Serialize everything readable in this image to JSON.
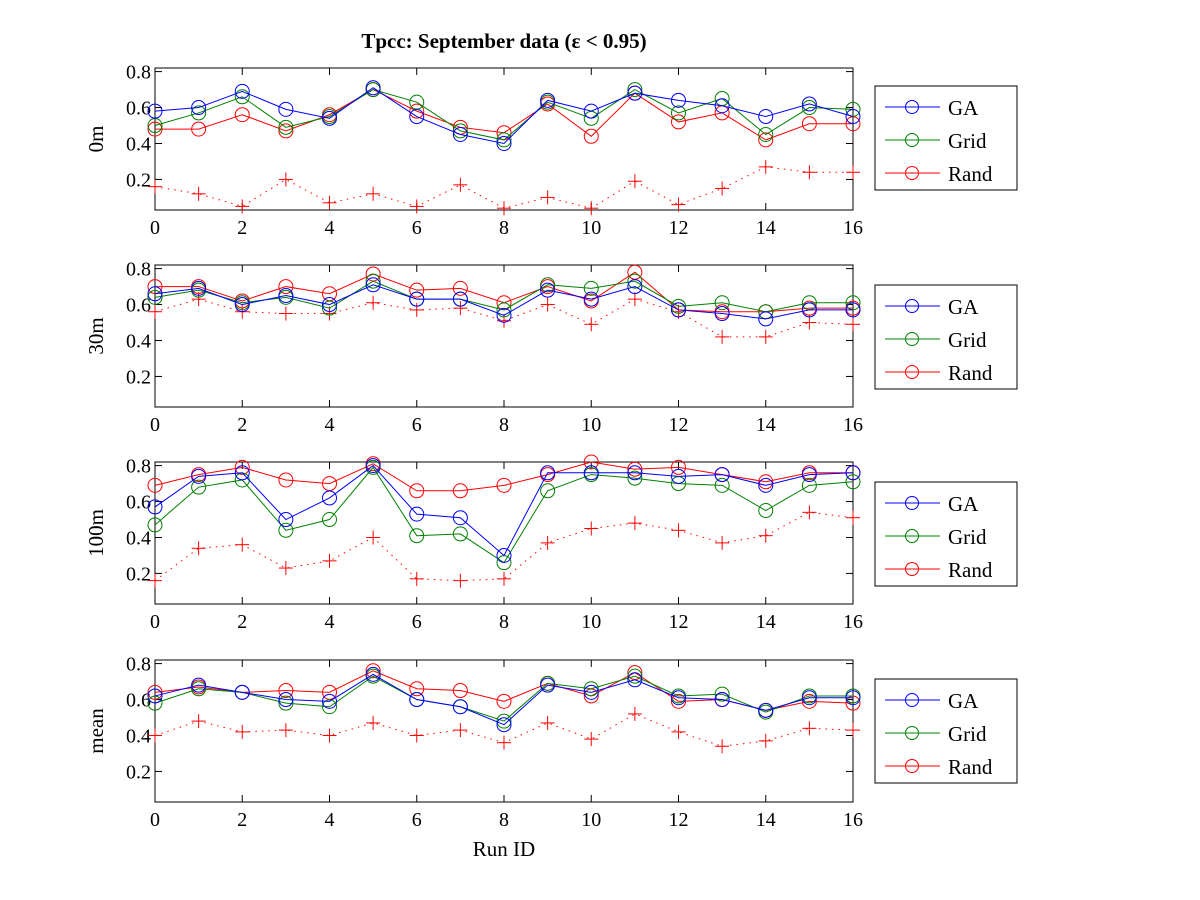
{
  "figure": {
    "title": "Tpcc:   September data   (ε < 0.95)",
    "xlabel": "Run ID"
  },
  "colors": {
    "GA": "#0000ff",
    "Grid": "#008000",
    "Rand": "#ff0000",
    "baseline": "#ff0000"
  },
  "chart_data": [
    {
      "type": "line",
      "ylabel": "0m",
      "x": [
        0,
        1,
        2,
        3,
        4,
        5,
        6,
        7,
        8,
        9,
        10,
        11,
        12,
        13,
        14,
        15,
        16
      ],
      "xlim": [
        0,
        16
      ],
      "ylim": [
        0.03,
        0.82
      ],
      "xticks": [
        0,
        2,
        4,
        6,
        8,
        10,
        12,
        14,
        16
      ],
      "yticks": [
        0.2,
        0.4,
        0.6,
        0.8
      ],
      "legend": [
        "GA",
        "Grid",
        "Rand"
      ],
      "legend_position": "outside-right",
      "grid": false,
      "series": [
        {
          "name": "GA",
          "marker": "circle",
          "line": "solid",
          "values": [
            0.58,
            0.6,
            0.69,
            0.59,
            0.54,
            0.71,
            0.55,
            0.45,
            0.4,
            0.64,
            0.58,
            0.68,
            0.64,
            0.61,
            0.55,
            0.62,
            0.55
          ]
        },
        {
          "name": "Grid",
          "marker": "circle",
          "line": "solid",
          "values": [
            0.5,
            0.57,
            0.66,
            0.49,
            0.55,
            0.7,
            0.63,
            0.47,
            0.42,
            0.63,
            0.54,
            0.7,
            0.57,
            0.65,
            0.45,
            0.6,
            0.59
          ]
        },
        {
          "name": "Rand",
          "marker": "circle",
          "line": "solid",
          "values": [
            0.48,
            0.48,
            0.56,
            0.47,
            0.56,
            0.7,
            0.58,
            0.49,
            0.46,
            0.62,
            0.44,
            0.68,
            0.52,
            0.57,
            0.42,
            0.51,
            0.51
          ]
        },
        {
          "name": "baseline",
          "marker": "plus",
          "line": "dotted",
          "values": [
            0.16,
            0.12,
            0.05,
            0.2,
            0.07,
            0.12,
            0.05,
            0.17,
            0.04,
            0.1,
            0.04,
            0.19,
            0.06,
            0.15,
            0.27,
            0.24,
            0.24
          ]
        }
      ]
    },
    {
      "type": "line",
      "ylabel": "30m",
      "x": [
        0,
        1,
        2,
        3,
        4,
        5,
        6,
        7,
        8,
        9,
        10,
        11,
        12,
        13,
        14,
        15,
        16
      ],
      "xlim": [
        0,
        16
      ],
      "ylim": [
        0.03,
        0.82
      ],
      "xticks": [
        0,
        2,
        4,
        6,
        8,
        10,
        12,
        14,
        16
      ],
      "yticks": [
        0.2,
        0.4,
        0.6,
        0.8
      ],
      "legend": [
        "GA",
        "Grid",
        "Rand"
      ],
      "legend_position": "outside-right",
      "grid": false,
      "series": [
        {
          "name": "GA",
          "marker": "circle",
          "line": "solid",
          "values": [
            0.66,
            0.69,
            0.6,
            0.65,
            0.6,
            0.71,
            0.63,
            0.63,
            0.54,
            0.68,
            0.63,
            0.7,
            0.57,
            0.55,
            0.52,
            0.57,
            0.57
          ]
        },
        {
          "name": "Grid",
          "marker": "circle",
          "line": "solid",
          "values": [
            0.64,
            0.68,
            0.61,
            0.64,
            0.58,
            0.73,
            0.63,
            0.63,
            0.57,
            0.71,
            0.69,
            0.73,
            0.59,
            0.61,
            0.56,
            0.61,
            0.61
          ]
        },
        {
          "name": "Rand",
          "marker": "circle",
          "line": "solid",
          "values": [
            0.7,
            0.7,
            0.62,
            0.7,
            0.66,
            0.77,
            0.68,
            0.69,
            0.61,
            0.7,
            0.62,
            0.78,
            0.57,
            0.56,
            0.56,
            0.58,
            0.58
          ]
        },
        {
          "name": "baseline",
          "marker": "plus",
          "line": "dotted",
          "values": [
            0.56,
            0.63,
            0.56,
            0.55,
            0.55,
            0.61,
            0.57,
            0.58,
            0.51,
            0.6,
            0.49,
            0.63,
            0.56,
            0.42,
            0.42,
            0.5,
            0.49
          ]
        }
      ]
    },
    {
      "type": "line",
      "ylabel": "100m",
      "x": [
        0,
        1,
        2,
        3,
        4,
        5,
        6,
        7,
        8,
        9,
        10,
        11,
        12,
        13,
        14,
        15,
        16
      ],
      "xlim": [
        0,
        16
      ],
      "ylim": [
        0.03,
        0.82
      ],
      "xticks": [
        0,
        2,
        4,
        6,
        8,
        10,
        12,
        14,
        16
      ],
      "yticks": [
        0.2,
        0.4,
        0.6,
        0.8
      ],
      "legend": [
        "GA",
        "Grid",
        "Rand"
      ],
      "legend_position": "outside-right",
      "grid": false,
      "series": [
        {
          "name": "GA",
          "marker": "circle",
          "line": "solid",
          "values": [
            0.57,
            0.74,
            0.76,
            0.5,
            0.62,
            0.8,
            0.53,
            0.51,
            0.3,
            0.76,
            0.76,
            0.76,
            0.74,
            0.75,
            0.69,
            0.75,
            0.76
          ]
        },
        {
          "name": "Grid",
          "marker": "circle",
          "line": "solid",
          "values": [
            0.47,
            0.68,
            0.72,
            0.44,
            0.5,
            0.79,
            0.41,
            0.42,
            0.26,
            0.66,
            0.75,
            0.73,
            0.7,
            0.69,
            0.55,
            0.69,
            0.71
          ]
        },
        {
          "name": "Rand",
          "marker": "circle",
          "line": "solid",
          "values": [
            0.69,
            0.75,
            0.79,
            0.72,
            0.7,
            0.81,
            0.66,
            0.66,
            0.69,
            0.75,
            0.82,
            0.78,
            0.79,
            0.75,
            0.71,
            0.76,
            0.76
          ]
        },
        {
          "name": "baseline",
          "marker": "plus",
          "line": "dotted",
          "values": [
            0.16,
            0.34,
            0.36,
            0.23,
            0.27,
            0.4,
            0.17,
            0.16,
            0.17,
            0.37,
            0.45,
            0.48,
            0.44,
            0.37,
            0.41,
            0.54,
            0.51
          ]
        }
      ]
    },
    {
      "type": "line",
      "ylabel": "mean",
      "x": [
        0,
        1,
        2,
        3,
        4,
        5,
        6,
        7,
        8,
        9,
        10,
        11,
        12,
        13,
        14,
        15,
        16
      ],
      "xlim": [
        0,
        16
      ],
      "ylim": [
        0.03,
        0.82
      ],
      "xticks": [
        0,
        2,
        4,
        6,
        8,
        10,
        12,
        14,
        16
      ],
      "yticks": [
        0.2,
        0.4,
        0.6,
        0.8
      ],
      "legend": [
        "GA",
        "Grid",
        "Rand"
      ],
      "legend_position": "outside-right",
      "grid": false,
      "series": [
        {
          "name": "GA",
          "marker": "circle",
          "line": "solid",
          "values": [
            0.62,
            0.68,
            0.64,
            0.6,
            0.59,
            0.74,
            0.6,
            0.56,
            0.46,
            0.68,
            0.64,
            0.71,
            0.61,
            0.6,
            0.54,
            0.61,
            0.61
          ]
        },
        {
          "name": "Grid",
          "marker": "circle",
          "line": "solid",
          "values": [
            0.58,
            0.66,
            0.64,
            0.58,
            0.56,
            0.73,
            0.6,
            0.56,
            0.48,
            0.69,
            0.66,
            0.73,
            0.62,
            0.63,
            0.53,
            0.62,
            0.62
          ]
        },
        {
          "name": "Rand",
          "marker": "circle",
          "line": "solid",
          "values": [
            0.64,
            0.67,
            0.64,
            0.65,
            0.64,
            0.76,
            0.66,
            0.65,
            0.59,
            0.69,
            0.62,
            0.75,
            0.59,
            0.6,
            0.54,
            0.59,
            0.58
          ]
        },
        {
          "name": "baseline",
          "marker": "plus",
          "line": "dotted",
          "values": [
            0.4,
            0.48,
            0.42,
            0.43,
            0.4,
            0.47,
            0.4,
            0.43,
            0.36,
            0.47,
            0.38,
            0.52,
            0.42,
            0.34,
            0.37,
            0.44,
            0.43
          ]
        }
      ]
    }
  ]
}
